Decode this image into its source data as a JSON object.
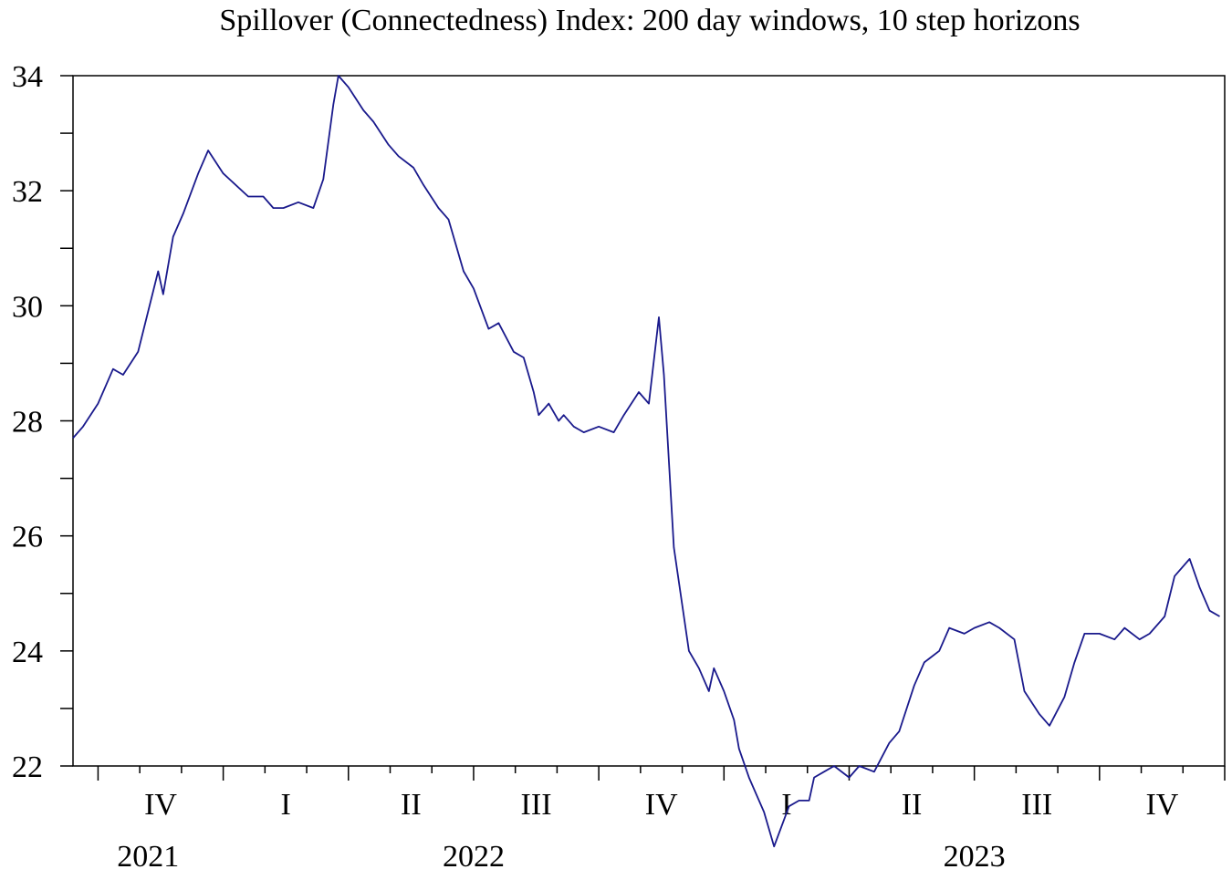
{
  "chart_data": {
    "type": "line",
    "title": "Spillover (Connectedness) Index: 200 day windows, 10 step horizons",
    "xlabel": "",
    "ylabel": "",
    "ylim": [
      22,
      34
    ],
    "grid": false,
    "legend": "none",
    "line_color": "#1a1a8c",
    "y_tick_labels": [
      "34",
      "32",
      "30",
      "28",
      "26",
      "24",
      "22"
    ],
    "x_quarter_labels": [
      {
        "label": "IV",
        "t": 2021.875
      },
      {
        "label": "I",
        "t": 2022.125
      },
      {
        "label": "II",
        "t": 2022.375
      },
      {
        "label": "III",
        "t": 2022.625
      },
      {
        "label": "IV",
        "t": 2022.875
      },
      {
        "label": "I",
        "t": 2023.125
      },
      {
        "label": "II",
        "t": 2023.375
      },
      {
        "label": "III",
        "t": 2023.625
      },
      {
        "label": "IV",
        "t": 2023.875
      }
    ],
    "x_year_labels": [
      {
        "label": "2021",
        "t": 2021.85
      },
      {
        "label": "2022",
        "t": 2022.5
      },
      {
        "label": "2023",
        "t": 2023.5
      }
    ],
    "series": [
      {
        "x": [
          2021.7,
          2021.72,
          2021.75,
          2021.78,
          2021.8,
          2021.83,
          2021.85,
          2021.87,
          2021.88,
          2021.9,
          2021.92,
          2021.95,
          2021.97,
          2022.0,
          2022.05,
          2022.08,
          2022.1,
          2022.12,
          2022.15,
          2022.18,
          2022.2,
          2022.22,
          2022.23,
          2022.25,
          2022.28,
          2022.3,
          2022.33,
          2022.35,
          2022.38,
          2022.4,
          2022.43,
          2022.45,
          2022.48,
          2022.5,
          2022.53,
          2022.55,
          2022.58,
          2022.6,
          2022.62,
          2022.63,
          2022.65,
          2022.67,
          2022.68,
          2022.7,
          2022.72,
          2022.75,
          2022.78,
          2022.8,
          2022.83,
          2022.85,
          2022.87,
          2022.88,
          2022.9,
          2022.93,
          2022.95,
          2022.97,
          2022.98,
          2023.0,
          2023.02,
          2023.03,
          2023.05,
          2023.08,
          2023.1,
          2023.13,
          2023.15,
          2023.17,
          2023.18,
          2023.2,
          2023.22,
          2023.25,
          2023.27,
          2023.3,
          2023.33,
          2023.35,
          2023.38,
          2023.4,
          2023.43,
          2023.45,
          2023.48,
          2023.5,
          2023.53,
          2023.55,
          2023.58,
          2023.6,
          2023.63,
          2023.65,
          2023.68,
          2023.7,
          2023.72,
          2023.75,
          2023.78,
          2023.8,
          2023.83,
          2023.85,
          2023.88,
          2023.9,
          2023.93,
          2023.95,
          2023.97,
          2023.99
        ],
        "values": [
          27.7,
          27.9,
          28.3,
          28.9,
          28.8,
          29.2,
          29.9,
          30.6,
          30.2,
          31.2,
          31.6,
          32.3,
          32.7,
          32.3,
          31.9,
          31.9,
          31.7,
          31.7,
          31.8,
          31.7,
          32.2,
          33.5,
          34.0,
          33.8,
          33.4,
          33.2,
          32.8,
          32.6,
          32.4,
          32.1,
          31.7,
          31.5,
          30.6,
          30.3,
          29.6,
          29.7,
          29.2,
          29.1,
          28.5,
          28.1,
          28.3,
          28.0,
          28.1,
          27.9,
          27.8,
          27.9,
          27.8,
          28.1,
          28.5,
          28.3,
          29.8,
          28.8,
          25.8,
          24.0,
          23.7,
          23.3,
          23.7,
          23.3,
          22.8,
          22.3,
          21.8,
          21.2,
          20.6,
          21.3,
          21.4,
          21.4,
          21.8,
          21.9,
          22.0,
          21.8,
          22.0,
          21.9,
          22.4,
          22.6,
          23.4,
          23.8,
          24.0,
          24.4,
          24.3,
          24.4,
          24.5,
          24.4,
          24.2,
          23.3,
          22.9,
          22.7,
          23.2,
          23.8,
          24.3,
          24.3,
          24.2,
          24.4,
          24.2,
          24.3,
          24.6,
          25.3,
          25.6,
          25.1,
          24.7,
          24.6
        ]
      }
    ]
  }
}
